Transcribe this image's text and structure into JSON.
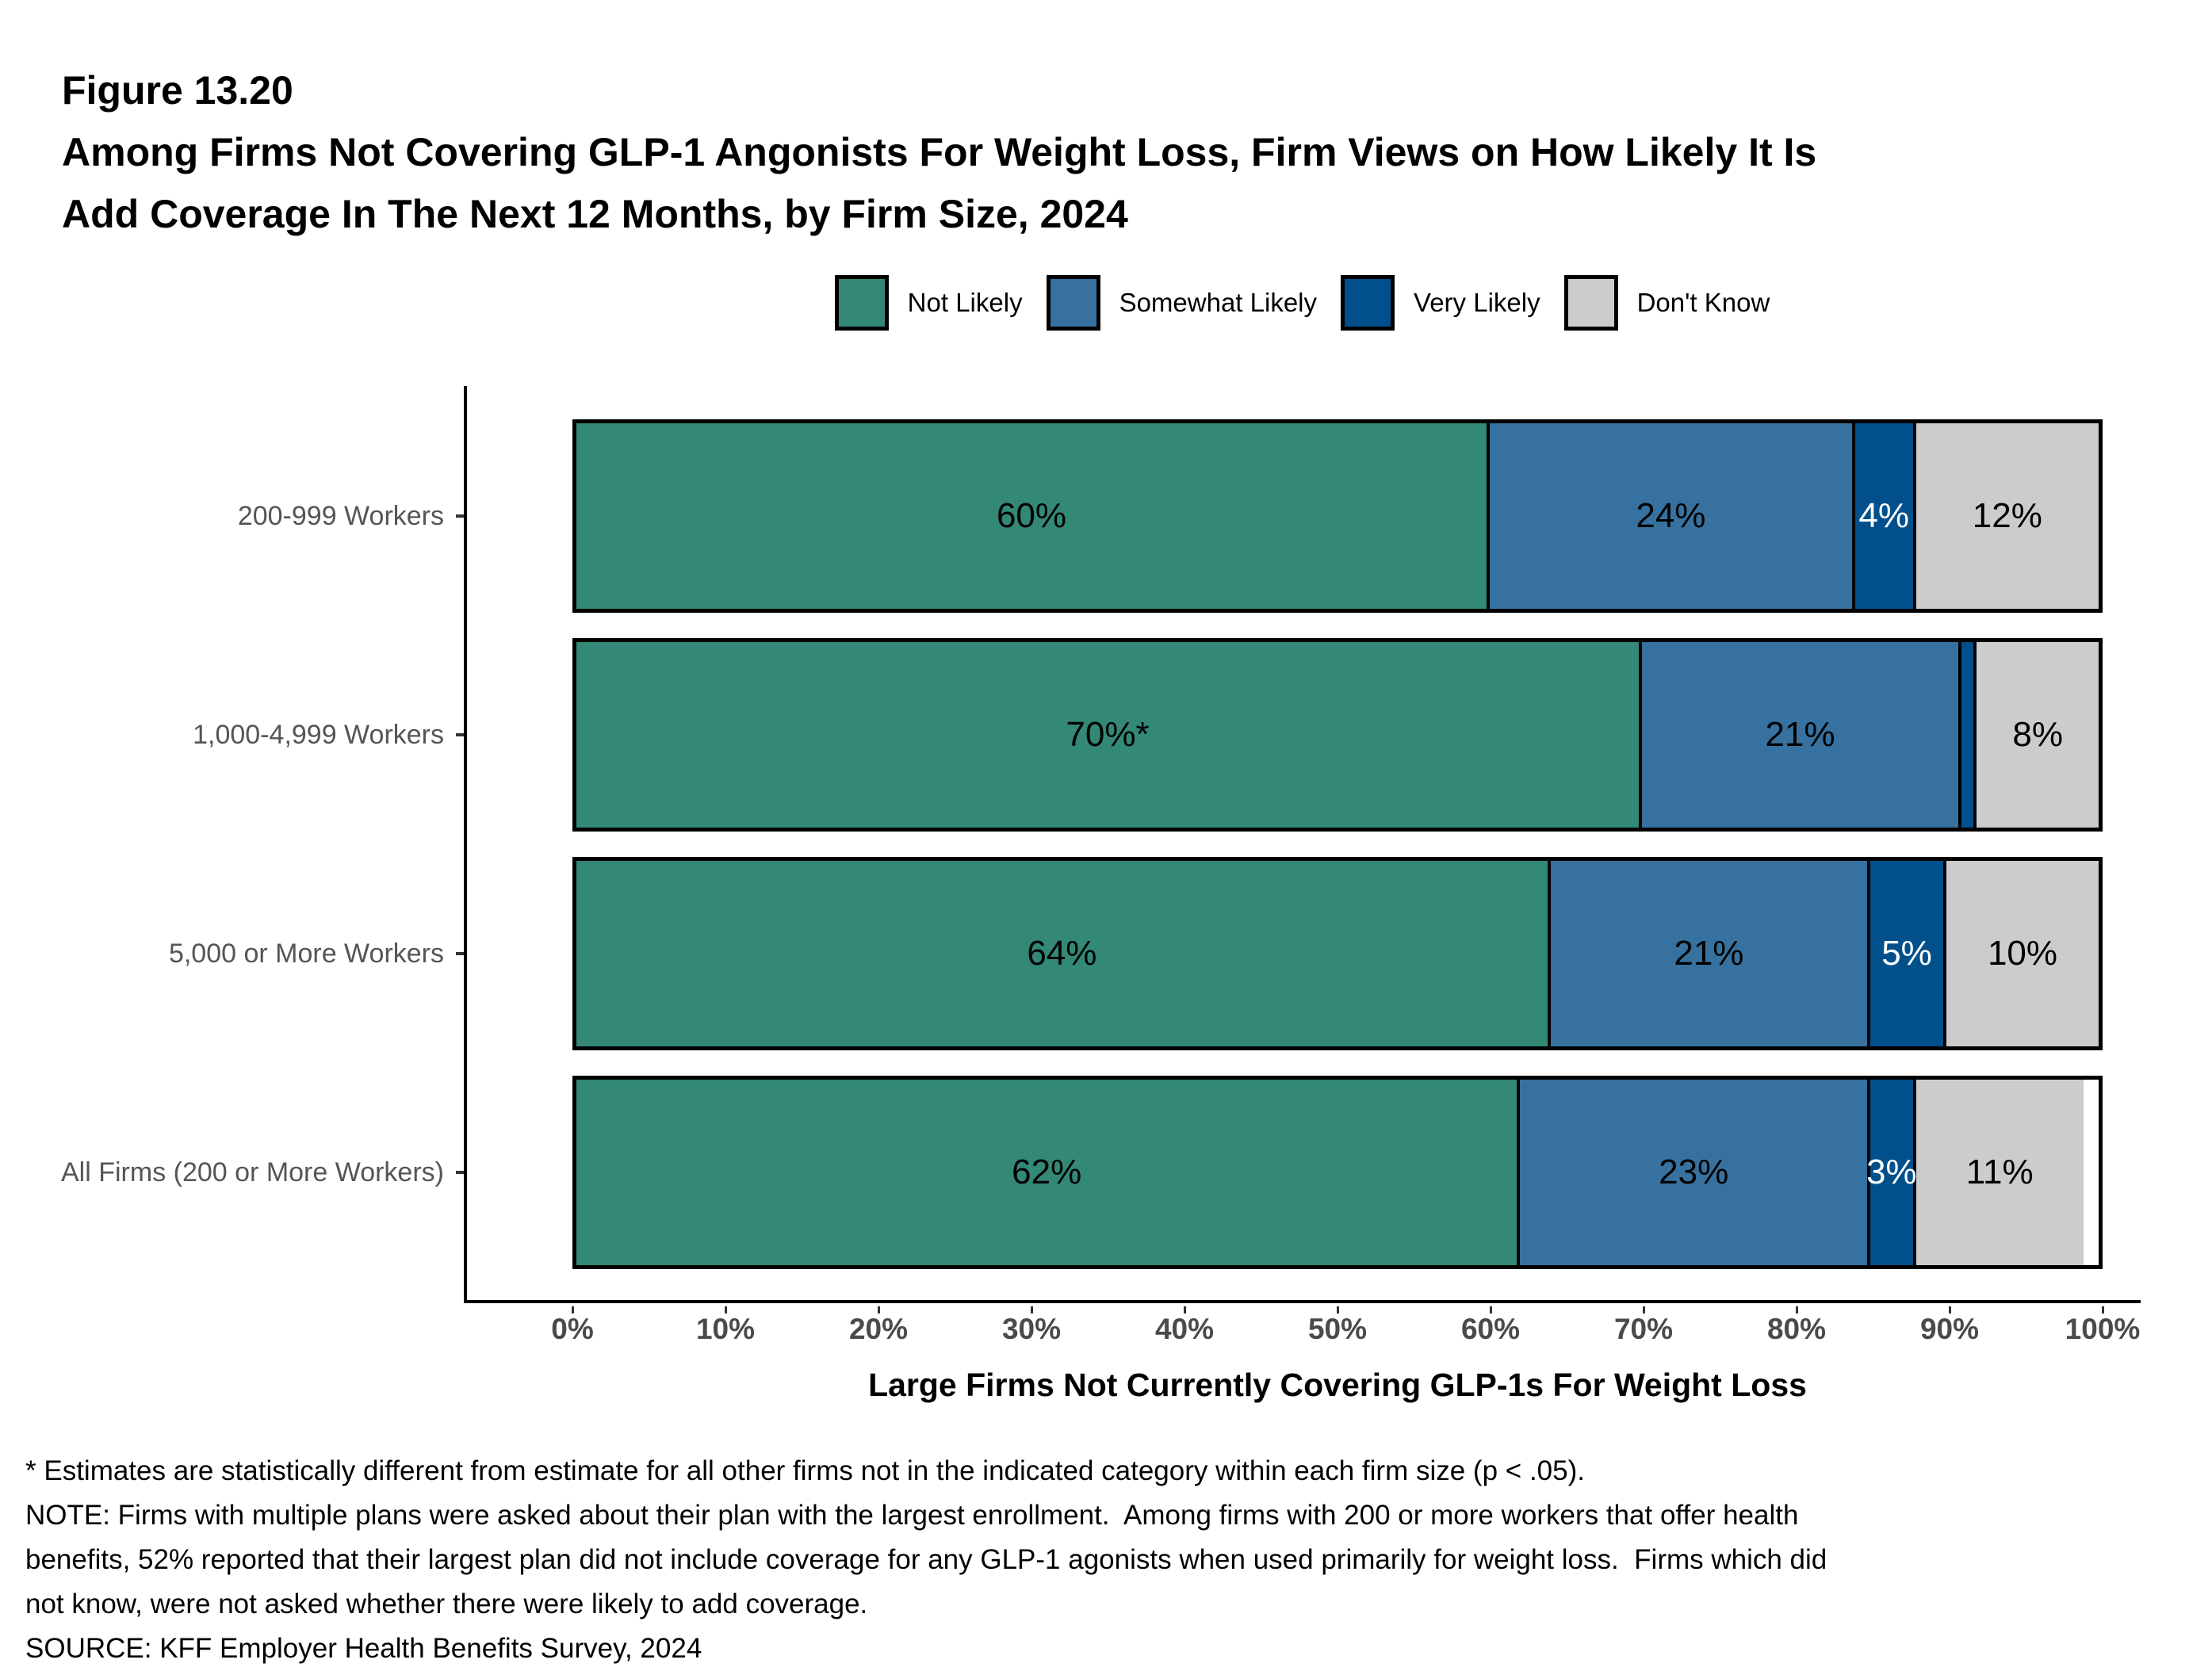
{
  "header": {
    "figure_number": "Figure 13.20",
    "title_line1": "Among Firms Not Covering GLP-1 Angonists For Weight Loss, Firm Views on How Likely It Is",
    "title_line2": "Add Coverage In The Next 12 Months, by Firm Size, 2024"
  },
  "chart_data": {
    "type": "bar",
    "variant": "horizontal-stacked",
    "title": "Among Firms Not Covering GLP-1 Angonists For Weight Loss, Firm Views on How Likely It Is Add Coverage In The Next 12 Months, by Firm Size, 2024",
    "categories": [
      "200-999 Workers",
      "1,000-4,999 Workers",
      "5,000 or More Workers",
      "All Firms (200 or More Workers)"
    ],
    "series": [
      {
        "name": "Not Likely",
        "color": "#338876",
        "text_color": "#000000",
        "values": [
          60,
          70,
          64,
          62
        ],
        "labels": [
          "60%",
          "70%*",
          "64%",
          "62%"
        ]
      },
      {
        "name": "Somewhat Likely",
        "color": "#36719F",
        "text_color": "#000000",
        "values": [
          24,
          21,
          21,
          23
        ],
        "labels": [
          "24%",
          "21%",
          "21%",
          "23%"
        ]
      },
      {
        "name": "Very Likely",
        "color": "#01508C",
        "text_color": "#ffffff",
        "values": [
          4,
          1,
          5,
          3
        ],
        "labels": [
          "4%",
          "",
          "5%",
          "3%"
        ]
      },
      {
        "name": "Don't Know",
        "color": "#CCCCCC",
        "text_color": "#000000",
        "values": [
          12,
          8,
          10,
          11
        ],
        "labels": [
          "12%",
          "8%",
          "10%",
          "11%"
        ]
      }
    ],
    "xlim": [
      0,
      100
    ],
    "xticks": {
      "values": [
        0,
        10,
        20,
        30,
        40,
        50,
        60,
        70,
        80,
        90,
        100
      ],
      "labels": [
        "0%",
        "10%",
        "20%",
        "30%",
        "40%",
        "50%",
        "60%",
        "70%",
        "80%",
        "90%",
        "100%"
      ]
    },
    "xlabel": "Large Firms Not Currently Covering GLP-1s For Weight Loss",
    "grid": false,
    "legend_position": "top"
  },
  "footnotes": {
    "lines": [
      "* Estimates are statistically different from estimate for all other firms not in the indicated category within each firm size (p < .05).",
      "NOTE: Firms with multiple plans were asked about their plan with the largest enrollment.  Among firms with 200 or more workers that offer health",
      "benefits, 52% reported that their largest plan did not include coverage for any GLP-1 agonists when used primarily for weight loss.  Firms which did",
      "not know, were not asked whether there were likely to add coverage.",
      "SOURCE: KFF Employer Health Benefits Survey, 2024"
    ]
  },
  "colors": {
    "axis_line": "#000000",
    "tick_mark": "#333333",
    "tick_label_text": "#4a4a4a",
    "category_label_text": "#555555",
    "title_text": "#000000"
  }
}
